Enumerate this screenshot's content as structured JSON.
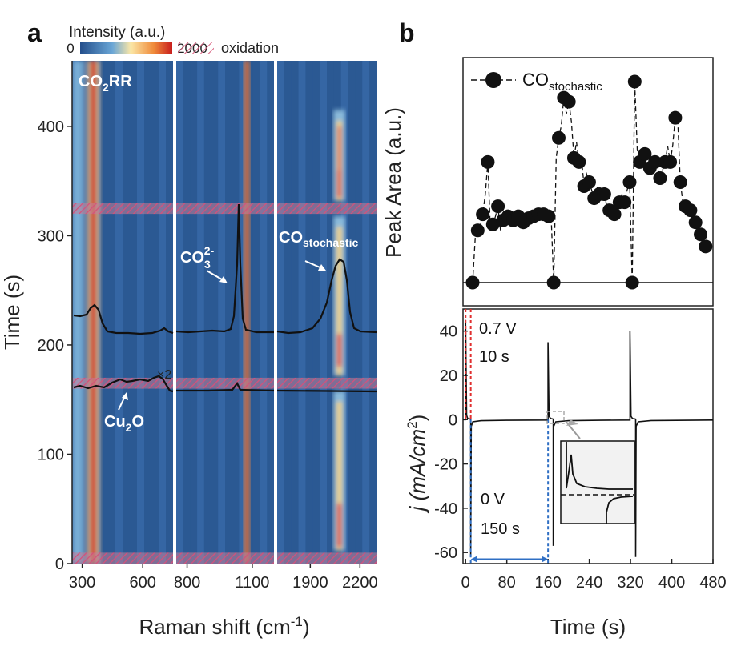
{
  "colors": {
    "heatmap_low": "#2a5a95",
    "heatmap_mid": "#8fc3e0",
    "heatmap_high": "#d7301f",
    "oxidation": "#c06080",
    "current_marker_red": "#e03030",
    "current_marker_blue": "#2f6fc4"
  },
  "panel_a": {
    "label": "a",
    "colorbar": {
      "title": "Intensity (a.u.)",
      "min_label": "0",
      "max_label": "2000",
      "oxidation_label": "oxidation"
    },
    "xlabel": "Raman shift (cm",
    "xlabel_sup": "-1",
    "xlabel_end": ")",
    "ylabel": "Time (s)",
    "ylim": [
      0,
      460
    ],
    "yticks": [
      0,
      100,
      200,
      300,
      400
    ],
    "segments": [
      {
        "range": [
          250,
          750
        ],
        "ticks": [
          300,
          600
        ]
      },
      {
        "range": [
          750,
          1200
        ],
        "ticks": [
          800,
          1100
        ]
      },
      {
        "range": [
          1700,
          2300
        ],
        "ticks": [
          1900,
          2200
        ]
      }
    ],
    "oxidation_bands": [
      [
        0,
        10
      ],
      [
        160,
        170
      ],
      [
        320,
        330
      ]
    ],
    "annotations": {
      "co2rr": "CO",
      "co2rr_sub": "2",
      "co2rr_end": "RR",
      "carbonate": "CO",
      "carbonate_sub": "3",
      "carbonate_sup": "2-",
      "co": "CO",
      "co_sub": "stochastic",
      "cu2o": "Cu",
      "cu2o_sub": "2",
      "cu2o_end": "O",
      "x2": "×2"
    }
  },
  "panel_b": {
    "label": "b",
    "peak_area": {
      "ylabel": "Peak Area (a.u.)",
      "legend": "CO",
      "legend_sub": "stochastic",
      "ylim": [
        0,
        100
      ],
      "points": [
        [
          0,
          0
        ],
        [
          5,
          22
        ],
        [
          10,
          26
        ],
        [
          15,
          28
        ],
        [
          20,
          34
        ],
        [
          25,
          44
        ],
        [
          30,
          60
        ],
        [
          35,
          27
        ],
        [
          40,
          29
        ],
        [
          45,
          33
        ],
        [
          50,
          38
        ],
        [
          55,
          26
        ],
        [
          60,
          31
        ],
        [
          65,
          28
        ],
        [
          70,
          33
        ],
        [
          75,
          29
        ],
        [
          80,
          31
        ],
        [
          85,
          36
        ],
        [
          90,
          33
        ],
        [
          95,
          34
        ],
        [
          100,
          30
        ],
        [
          105,
          34
        ],
        [
          110,
          32
        ],
        [
          115,
          34
        ],
        [
          120,
          33
        ],
        [
          125,
          32
        ],
        [
          130,
          34
        ],
        [
          135,
          33
        ],
        [
          140,
          34
        ],
        [
          145,
          32
        ],
        [
          150,
          33
        ],
        [
          155,
          33
        ],
        [
          160,
          0
        ],
        [
          165,
          62
        ],
        [
          170,
          72
        ],
        [
          175,
          78
        ],
        [
          180,
          92
        ],
        [
          185,
          84
        ],
        [
          190,
          90
        ],
        [
          195,
          80
        ],
        [
          200,
          62
        ],
        [
          205,
          70
        ],
        [
          210,
          60
        ],
        [
          215,
          62
        ],
        [
          220,
          48
        ],
        [
          225,
          54
        ],
        [
          230,
          50
        ],
        [
          235,
          46
        ],
        [
          240,
          42
        ],
        [
          245,
          48
        ],
        [
          250,
          44
        ],
        [
          255,
          42
        ],
        [
          260,
          44
        ],
        [
          265,
          38
        ],
        [
          270,
          36
        ],
        [
          275,
          38
        ],
        [
          280,
          34
        ],
        [
          285,
          36
        ],
        [
          290,
          40
        ],
        [
          295,
          44
        ],
        [
          300,
          40
        ],
        [
          305,
          46
        ],
        [
          310,
          50
        ],
        [
          315,
          0
        ],
        [
          320,
          100
        ],
        [
          325,
          66
        ],
        [
          330,
          60
        ],
        [
          335,
          58
        ],
        [
          340,
          64
        ],
        [
          345,
          55
        ],
        [
          350,
          57
        ],
        [
          355,
          62
        ],
        [
          360,
          60
        ],
        [
          365,
          58
        ],
        [
          370,
          52
        ],
        [
          375,
          56
        ],
        [
          380,
          60
        ],
        [
          385,
          68
        ],
        [
          390,
          60
        ],
        [
          395,
          68
        ],
        [
          400,
          82
        ],
        [
          405,
          80
        ],
        [
          410,
          50
        ],
        [
          415,
          40
        ],
        [
          420,
          38
        ],
        [
          425,
          40
        ],
        [
          430,
          36
        ],
        [
          435,
          36
        ],
        [
          440,
          30
        ],
        [
          445,
          32
        ],
        [
          450,
          24
        ],
        [
          455,
          22
        ],
        [
          460,
          18
        ],
        [
          465,
          16
        ]
      ]
    },
    "current": {
      "ylabel": "j (mA/cm",
      "ylabel_sup": "2",
      "ylabel_end": ")",
      "xlabel": "Time (s)",
      "xlim": [
        -5,
        480
      ],
      "ylim": [
        -65,
        50
      ],
      "xticks": [
        0,
        80,
        160,
        240,
        320,
        400,
        480
      ],
      "yticks": [
        40,
        20,
        0,
        -20,
        -40,
        -60
      ],
      "annotations": {
        "oxid_v": "0.7 V",
        "oxid_t": "10 s",
        "red_v": "0 V",
        "red_t": "150 s"
      }
    }
  }
}
